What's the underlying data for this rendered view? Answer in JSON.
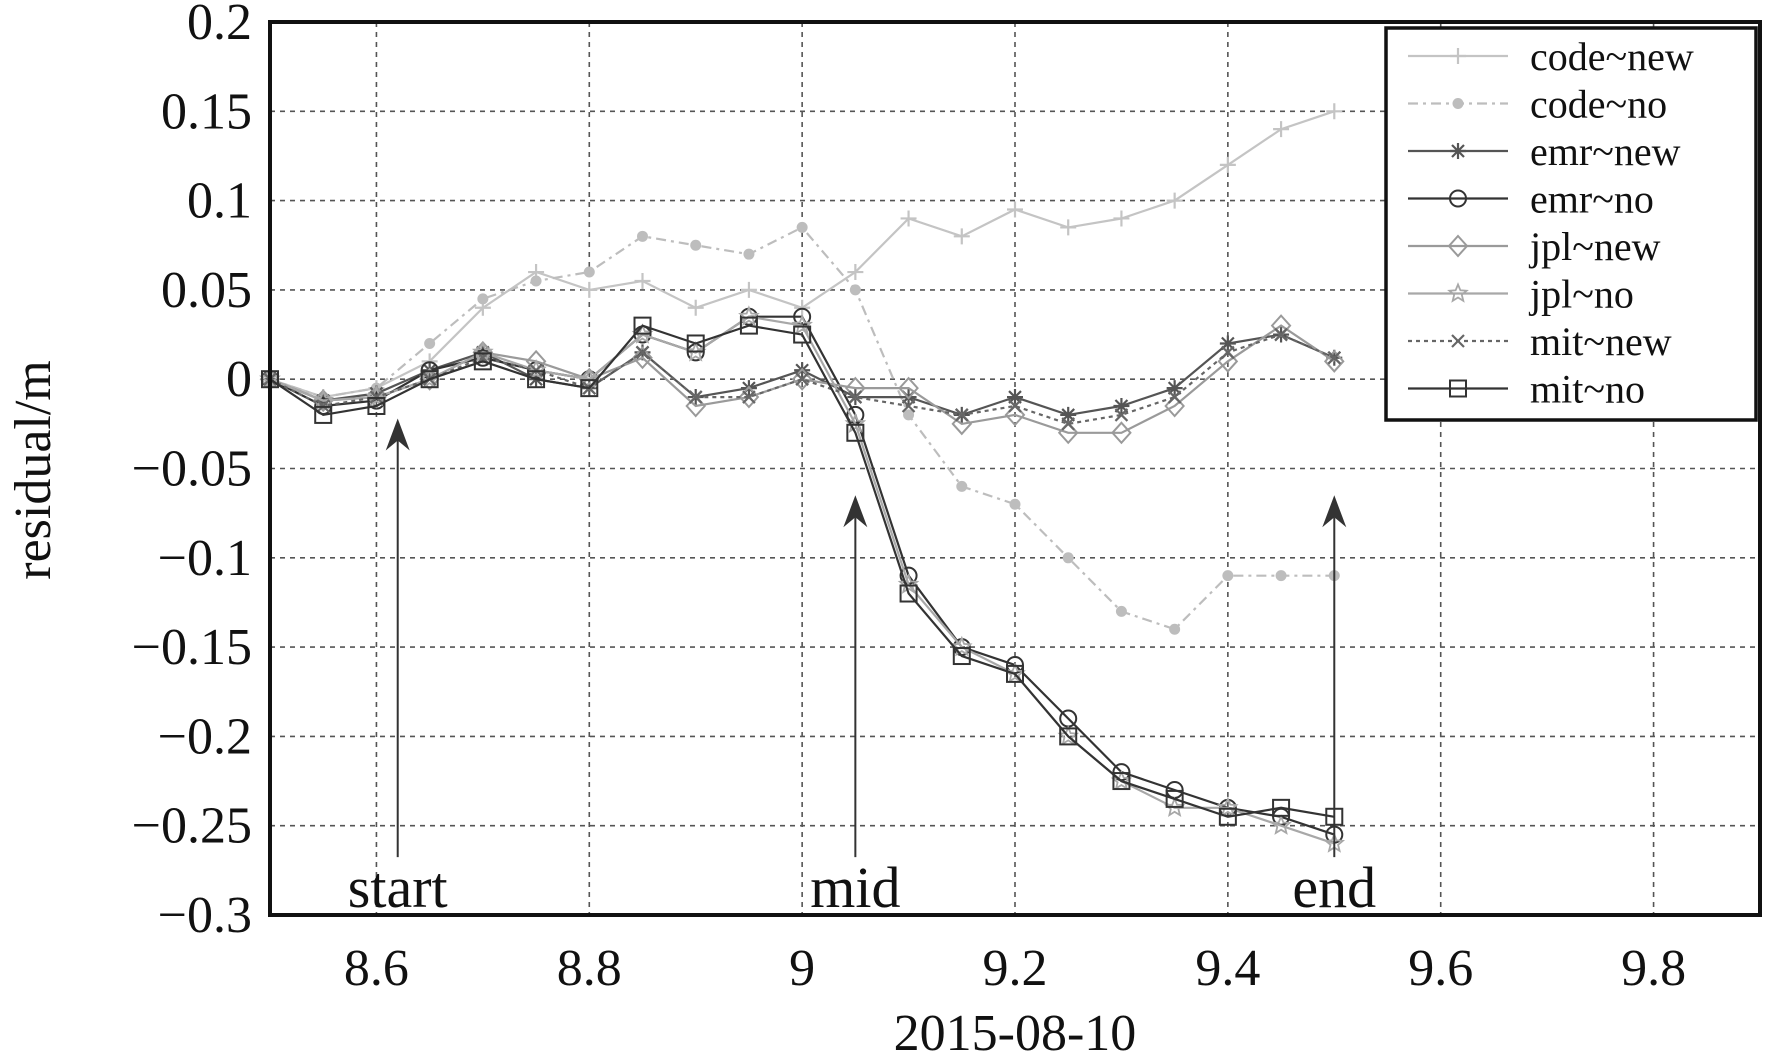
{
  "chart_data": {
    "type": "line",
    "title": "",
    "xlabel": "2015-08-10",
    "ylabel": "residual/m",
    "xlim": [
      8.5,
      9.9
    ],
    "ylim": [
      -0.3,
      0.2
    ],
    "xticks": [
      8.6,
      8.8,
      9.0,
      9.2,
      9.4,
      9.6,
      9.8
    ],
    "xtick_labels": [
      "8.6",
      "8.8",
      "9",
      "9.2",
      "9.4",
      "9.6",
      "9.8"
    ],
    "yticks": [
      0.2,
      0.15,
      0.1,
      0.05,
      0,
      -0.05,
      -0.1,
      -0.15,
      -0.2,
      -0.25,
      -0.3
    ],
    "ytick_labels": [
      "0.2",
      "0.15",
      "0.1",
      "0.05",
      "0",
      "−0.05",
      "−0.1",
      "−0.15",
      "−0.2",
      "−0.25",
      "−0.3"
    ],
    "grid": true,
    "legend_position": "top-right",
    "annotations": [
      {
        "text": "start",
        "x": 8.62,
        "arrow_tip_y": -0.022
      },
      {
        "text": "mid",
        "x": 9.05,
        "arrow_tip_y": -0.065
      },
      {
        "text": "end",
        "x": 9.5,
        "arrow_tip_y": -0.065
      }
    ],
    "series": [
      {
        "name": "code~new",
        "color": "#c4c4c4",
        "marker": "plus",
        "dash": "",
        "x": [
          8.5,
          8.55,
          8.6,
          8.65,
          8.7,
          8.75,
          8.8,
          8.85,
          8.9,
          8.95,
          9.0,
          9.05,
          9.1,
          9.15,
          9.2,
          9.25,
          9.3,
          9.35,
          9.4,
          9.45,
          9.5
        ],
        "y": [
          0.0,
          -0.01,
          -0.005,
          0.01,
          0.04,
          0.06,
          0.05,
          0.055,
          0.04,
          0.05,
          0.04,
          0.06,
          0.09,
          0.08,
          0.095,
          0.085,
          0.09,
          0.1,
          0.12,
          0.14,
          0.15
        ]
      },
      {
        "name": "code~no",
        "color": "#bdbdbd",
        "marker": "dot",
        "dash": "10 5 3 5",
        "x": [
          8.5,
          8.55,
          8.6,
          8.65,
          8.7,
          8.75,
          8.8,
          8.85,
          8.9,
          8.95,
          9.0,
          9.05,
          9.1,
          9.15,
          9.2,
          9.25,
          9.3,
          9.35,
          9.4,
          9.45,
          9.5
        ],
        "y": [
          0.0,
          -0.01,
          -0.005,
          0.02,
          0.045,
          0.055,
          0.06,
          0.08,
          0.075,
          0.07,
          0.085,
          0.05,
          -0.02,
          -0.06,
          -0.07,
          -0.1,
          -0.13,
          -0.14,
          -0.11,
          -0.11,
          -0.11
        ]
      },
      {
        "name": "emr~new",
        "color": "#555555",
        "marker": "star",
        "dash": "",
        "x": [
          8.5,
          8.55,
          8.6,
          8.65,
          8.7,
          8.75,
          8.8,
          8.85,
          8.9,
          8.95,
          9.0,
          9.05,
          9.1,
          9.15,
          9.2,
          9.25,
          9.3,
          9.35,
          9.4,
          9.45,
          9.5
        ],
        "y": [
          0.0,
          -0.012,
          -0.008,
          0.005,
          0.015,
          0.0,
          -0.005,
          0.015,
          -0.01,
          -0.005,
          0.005,
          -0.01,
          -0.01,
          -0.02,
          -0.01,
          -0.02,
          -0.015,
          -0.005,
          0.02,
          0.025,
          0.012
        ]
      },
      {
        "name": "emr~no",
        "color": "#333333",
        "marker": "circle",
        "dash": "",
        "x": [
          8.5,
          8.55,
          8.6,
          8.65,
          8.7,
          8.75,
          8.8,
          8.85,
          8.9,
          8.95,
          9.0,
          9.05,
          9.1,
          9.15,
          9.2,
          9.25,
          9.3,
          9.35,
          9.4,
          9.45,
          9.5
        ],
        "y": [
          0.0,
          -0.015,
          -0.012,
          0.005,
          0.012,
          0.005,
          0.0,
          0.025,
          0.015,
          0.035,
          0.035,
          -0.02,
          -0.11,
          -0.15,
          -0.16,
          -0.19,
          -0.22,
          -0.23,
          -0.24,
          -0.245,
          -0.255
        ]
      },
      {
        "name": "jpl~new",
        "color": "#9a9a9a",
        "marker": "diamond",
        "dash": "",
        "x": [
          8.5,
          8.55,
          8.6,
          8.65,
          8.7,
          8.75,
          8.8,
          8.85,
          8.9,
          8.95,
          9.0,
          9.05,
          9.1,
          9.15,
          9.2,
          9.25,
          9.3,
          9.35,
          9.4,
          9.45,
          9.5
        ],
        "y": [
          0.0,
          -0.012,
          -0.01,
          0.0,
          0.015,
          0.01,
          0.0,
          0.012,
          -0.015,
          -0.01,
          0.0,
          -0.005,
          -0.005,
          -0.025,
          -0.02,
          -0.03,
          -0.03,
          -0.015,
          0.01,
          0.03,
          0.01
        ]
      },
      {
        "name": "jpl~no",
        "color": "#a8a8a8",
        "marker": "starlite",
        "dash": "",
        "x": [
          8.5,
          8.55,
          8.6,
          8.65,
          8.7,
          8.75,
          8.8,
          8.85,
          8.9,
          8.95,
          9.0,
          9.05,
          9.1,
          9.15,
          9.2,
          9.25,
          9.3,
          9.35,
          9.4,
          9.45,
          9.5
        ],
        "y": [
          0.0,
          -0.012,
          -0.01,
          0.0,
          0.015,
          0.005,
          0.0,
          0.025,
          0.015,
          0.035,
          0.03,
          -0.025,
          -0.115,
          -0.15,
          -0.165,
          -0.2,
          -0.225,
          -0.24,
          -0.24,
          -0.25,
          -0.26
        ]
      },
      {
        "name": "mit~new",
        "color": "#666666",
        "marker": "cross",
        "dash": "4 4",
        "x": [
          8.5,
          8.55,
          8.6,
          8.65,
          8.7,
          8.75,
          8.8,
          8.85,
          8.9,
          8.95,
          9.0,
          9.05,
          9.1,
          9.15,
          9.2,
          9.25,
          9.3,
          9.35,
          9.4,
          9.45,
          9.5
        ],
        "y": [
          0.0,
          -0.015,
          -0.01,
          0.0,
          0.012,
          0.005,
          -0.005,
          0.015,
          -0.01,
          -0.01,
          0.0,
          -0.01,
          -0.015,
          -0.02,
          -0.015,
          -0.025,
          -0.02,
          -0.01,
          0.015,
          0.025,
          0.012
        ]
      },
      {
        "name": "mit~no",
        "color": "#333333",
        "marker": "square",
        "dash": "",
        "x": [
          8.5,
          8.55,
          8.6,
          8.65,
          8.7,
          8.75,
          8.8,
          8.85,
          8.9,
          8.95,
          9.0,
          9.05,
          9.1,
          9.15,
          9.2,
          9.25,
          9.3,
          9.35,
          9.4,
          9.45,
          9.5
        ],
        "y": [
          0.0,
          -0.02,
          -0.015,
          0.0,
          0.01,
          0.0,
          -0.005,
          0.03,
          0.02,
          0.03,
          0.025,
          -0.03,
          -0.12,
          -0.155,
          -0.165,
          -0.2,
          -0.225,
          -0.235,
          -0.245,
          -0.24,
          -0.245
        ]
      }
    ]
  }
}
